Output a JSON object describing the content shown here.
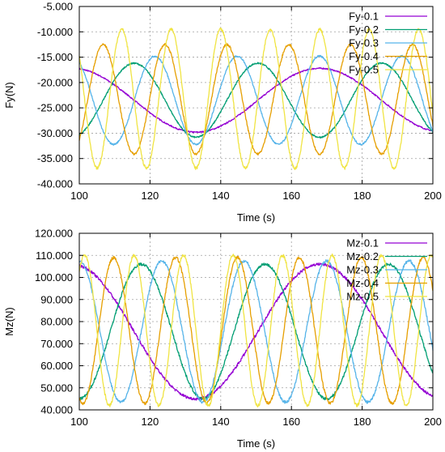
{
  "chart_data": [
    {
      "type": "line",
      "title": "",
      "xlabel": "Time (s)",
      "ylabel": "Fy(N)",
      "xlim": [
        100,
        200
      ],
      "ylim": [
        -40000,
        -5000
      ],
      "xticks": [
        100,
        120,
        140,
        160,
        180,
        200
      ],
      "yticks": [
        -40000,
        -35000,
        -30000,
        -25000,
        -20000,
        -15000,
        -10000,
        -5000
      ],
      "ytick_labels": [
        "-40.000",
        "-35.000",
        "-30.000",
        "-25.000",
        "-20.000",
        "-15.000",
        "-10.000",
        "-5.000"
      ],
      "grid": true,
      "legend_position": "top-right",
      "series": [
        {
          "name": "Fy-0.1",
          "color": "#9400d3",
          "mean": -23500,
          "amplitude": 6300,
          "period": 70,
          "trough_at": 133
        },
        {
          "name": "Fy-0.2",
          "color": "#009e73",
          "mean": -23500,
          "amplitude": 7300,
          "period": 35,
          "trough_at": 133
        },
        {
          "name": "Fy-0.3",
          "color": "#56b4e9",
          "mean": -23500,
          "amplitude": 8700,
          "period": 23.3,
          "trough_at": 133
        },
        {
          "name": "Fy-0.4",
          "color": "#e69f00",
          "mean": -23300,
          "amplitude": 10800,
          "period": 17.5,
          "trough_at": 133
        },
        {
          "name": "Fy-0.5",
          "color": "#f0e442",
          "mean": -23200,
          "amplitude": 13700,
          "period": 14,
          "trough_at": 133
        }
      ]
    },
    {
      "type": "line",
      "title": "",
      "xlabel": "Time (s)",
      "ylabel": "Mz(N)",
      "xlim": [
        100,
        200
      ],
      "ylim": [
        40000,
        120000
      ],
      "xticks": [
        100,
        120,
        140,
        160,
        180,
        200
      ],
      "yticks": [
        40000,
        50000,
        60000,
        70000,
        80000,
        90000,
        100000,
        110000,
        120000
      ],
      "ytick_labels": [
        "40.000",
        "50.000",
        "60.000",
        "70.000",
        "80.000",
        "90.000",
        "100.000",
        "110.000",
        "120.000"
      ],
      "grid": true,
      "legend_position": "top-right",
      "series": [
        {
          "name": "Mz-0.1",
          "color": "#9400d3",
          "mean": 75500,
          "amplitude": 30500,
          "period": 70,
          "trough_at": 133
        },
        {
          "name": "Mz-0.2",
          "color": "#009e73",
          "mean": 75500,
          "amplitude": 30500,
          "period": 35,
          "trough_at": 135
        },
        {
          "name": "Mz-0.3",
          "color": "#56b4e9",
          "mean": 75500,
          "amplitude": 32000,
          "period": 23.3,
          "trough_at": 135
        },
        {
          "name": "Mz-0.4",
          "color": "#e69f00",
          "mean": 76000,
          "amplitude": 33000,
          "period": 17.5,
          "trough_at": 136
        },
        {
          "name": "Mz-0.5",
          "color": "#f0e442",
          "mean": 76000,
          "amplitude": 34000,
          "period": 14,
          "trough_at": 136.5
        }
      ]
    }
  ]
}
